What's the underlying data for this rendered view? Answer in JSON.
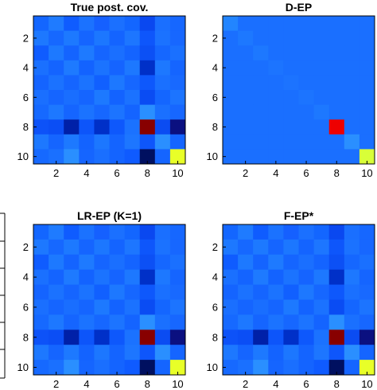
{
  "chart_data": [
    {
      "type": "heatmap",
      "title": "True post. cov.",
      "x_ticks": [
        "2",
        "4",
        "6",
        "8",
        "10"
      ],
      "y_ticks": [
        "2",
        "4",
        "6",
        "8",
        "10"
      ],
      "colors": [
        [
          "#1366ff",
          "#1f7bff",
          "#0f5cff",
          "#1b72ff",
          "#1560ff",
          "#1b70ff",
          "#1366ff",
          "#0a48f0",
          "#1a6fff",
          "#1667ff"
        ],
        [
          "#1d78ff",
          "#1668ff",
          "#1d79ff",
          "#1565ff",
          "#1c77ff",
          "#1464ff",
          "#1d76ff",
          "#0e56fb",
          "#1b72ff",
          "#1767ff"
        ],
        [
          "#0f5cff",
          "#1d79ff",
          "#1464ff",
          "#1e7aff",
          "#1565ff",
          "#1a6fff",
          "#1464ff",
          "#0c50f5",
          "#1567ff",
          "#1a70ff"
        ],
        [
          "#1a70ff",
          "#1464ff",
          "#1e7aff",
          "#1363ff",
          "#1b73ff",
          "#1564ff",
          "#1d78ff",
          "#0030c8",
          "#1d78ff",
          "#1565ff"
        ],
        [
          "#1464ff",
          "#1b72ff",
          "#1565ff",
          "#1b73ff",
          "#1160ff",
          "#1d78ff",
          "#1667ff",
          "#0e58fc",
          "#1a70ff",
          "#1869ff"
        ],
        [
          "#1a6fff",
          "#1565ff",
          "#196eff",
          "#1565ff",
          "#1d79ff",
          "#1363ff",
          "#1b72ff",
          "#0a4cf3",
          "#1466ff",
          "#1c74ff"
        ],
        [
          "#1669ff",
          "#1d78ff",
          "#1565ff",
          "#1b73ff",
          "#1667ff",
          "#1c74ff",
          "#1464ff",
          "#2a8fff",
          "#1a70ff",
          "#1767ff"
        ],
        [
          "#0d52f8",
          "#0b4ef5",
          "#0020a8",
          "#0d55fa",
          "#0030c8",
          "#0e58fc",
          "#1b72ff",
          "#880000",
          "#0b4cf2",
          "#0b1080"
        ],
        [
          "#1d78ff",
          "#1565ff",
          "#1d79ff",
          "#1363ff",
          "#1c77ff",
          "#1464ff",
          "#1d76ff",
          "#0e56fb",
          "#2a8fff",
          "#1565ff"
        ],
        [
          "#1669ff",
          "#1a70ff",
          "#2a8fff",
          "#1565ff",
          "#1a6fff",
          "#1464ff",
          "#0f5bff",
          "#001060",
          "#1565ff",
          "#e8ff28"
        ]
      ]
    },
    {
      "type": "heatmap",
      "title": "D-EP",
      "x_ticks": [
        "2",
        "4",
        "6",
        "8",
        "10"
      ],
      "y_ticks": [
        "2",
        "4",
        "6",
        "8",
        "10"
      ],
      "colors": [
        [
          "#2285ff",
          "#1a6fff",
          "#1a6fff",
          "#1a6fff",
          "#1a6fff",
          "#1a6fff",
          "#1a6fff",
          "#1a6fff",
          "#1a6fff",
          "#1a6fff"
        ],
        [
          "#1a6fff",
          "#1d78ff",
          "#1a6fff",
          "#1a6fff",
          "#1a6fff",
          "#1a6fff",
          "#1a6fff",
          "#1a6fff",
          "#1a6fff",
          "#1a6fff"
        ],
        [
          "#1a6fff",
          "#1a6fff",
          "#1d78ff",
          "#1a6fff",
          "#1a6fff",
          "#1a6fff",
          "#1a6fff",
          "#1a6fff",
          "#1a6fff",
          "#1a6fff"
        ],
        [
          "#1a6fff",
          "#1a6fff",
          "#1a6fff",
          "#1c74ff",
          "#1a6fff",
          "#1a6fff",
          "#1a6fff",
          "#1a6fff",
          "#1a6fff",
          "#1a6fff"
        ],
        [
          "#1a6fff",
          "#1a6fff",
          "#1a6fff",
          "#1a6fff",
          "#1c73ff",
          "#1a6fff",
          "#1a6fff",
          "#1a6fff",
          "#1a6fff",
          "#1a6fff"
        ],
        [
          "#1a6fff",
          "#1a6fff",
          "#1a6fff",
          "#1a6fff",
          "#1a6fff",
          "#1c74ff",
          "#1a6fff",
          "#1a6fff",
          "#1a6fff",
          "#1a6fff"
        ],
        [
          "#1a6fff",
          "#1a6fff",
          "#1a6fff",
          "#1a6fff",
          "#1a6fff",
          "#1a6fff",
          "#1d78ff",
          "#1a6fff",
          "#1a6fff",
          "#1a6fff"
        ],
        [
          "#1a6fff",
          "#1a6fff",
          "#1a6fff",
          "#1a6fff",
          "#1a6fff",
          "#1a6fff",
          "#1a6fff",
          "#ee0000",
          "#1a6fff",
          "#1a6fff"
        ],
        [
          "#1a6fff",
          "#1a6fff",
          "#1a6fff",
          "#1a6fff",
          "#1a6fff",
          "#1a6fff",
          "#1a6fff",
          "#1a6fff",
          "#2a8fff",
          "#1a6fff"
        ],
        [
          "#1a6fff",
          "#1a6fff",
          "#1a6fff",
          "#1a6fff",
          "#1a6fff",
          "#1a6fff",
          "#1a6fff",
          "#1a6fff",
          "#1a6fff",
          "#d8ff38"
        ]
      ]
    },
    {
      "type": "heatmap",
      "title": "LR-EP (K=1)",
      "x_ticks": [
        "2",
        "4",
        "6",
        "8",
        "10"
      ],
      "y_ticks": [
        "2",
        "4",
        "6",
        "8",
        "10"
      ],
      "colors": [
        [
          "#1366ff",
          "#1f7bff",
          "#0f5cff",
          "#1b72ff",
          "#1560ff",
          "#1b70ff",
          "#1366ff",
          "#0a48f0",
          "#1a6fff",
          "#1667ff"
        ],
        [
          "#1d78ff",
          "#1668ff",
          "#1d79ff",
          "#1565ff",
          "#1c77ff",
          "#1464ff",
          "#1d76ff",
          "#0e56fb",
          "#1b72ff",
          "#1767ff"
        ],
        [
          "#0f5cff",
          "#1d79ff",
          "#1464ff",
          "#1e7aff",
          "#1565ff",
          "#1a6fff",
          "#1464ff",
          "#0c50f5",
          "#1567ff",
          "#1a70ff"
        ],
        [
          "#1a70ff",
          "#1464ff",
          "#1e7aff",
          "#1363ff",
          "#1b73ff",
          "#1564ff",
          "#1d78ff",
          "#0030c8",
          "#1d78ff",
          "#1565ff"
        ],
        [
          "#1464ff",
          "#1b72ff",
          "#1565ff",
          "#1b73ff",
          "#1160ff",
          "#1d78ff",
          "#1667ff",
          "#0e58fc",
          "#1a70ff",
          "#1869ff"
        ],
        [
          "#1a6fff",
          "#1565ff",
          "#196eff",
          "#1565ff",
          "#1d79ff",
          "#1363ff",
          "#1b72ff",
          "#0a4cf3",
          "#1466ff",
          "#1c74ff"
        ],
        [
          "#1669ff",
          "#1d78ff",
          "#1565ff",
          "#1b73ff",
          "#1667ff",
          "#1c74ff",
          "#1464ff",
          "#2a8fff",
          "#1a70ff",
          "#1767ff"
        ],
        [
          "#0d52f8",
          "#0b4ef5",
          "#0020a8",
          "#0d55fa",
          "#0030c8",
          "#0e58fc",
          "#1b72ff",
          "#880000",
          "#0b4cf2",
          "#0b1080"
        ],
        [
          "#1d78ff",
          "#1565ff",
          "#1d79ff",
          "#1363ff",
          "#1c77ff",
          "#1464ff",
          "#1d76ff",
          "#0e56fb",
          "#2a8fff",
          "#1565ff"
        ],
        [
          "#1669ff",
          "#1a70ff",
          "#2a8fff",
          "#1565ff",
          "#1a6fff",
          "#1464ff",
          "#0f5bff",
          "#001060",
          "#1565ff",
          "#e8ff28"
        ]
      ]
    },
    {
      "type": "heatmap",
      "title": "F-EP*",
      "x_ticks": [
        "2",
        "4",
        "6",
        "8",
        "10"
      ],
      "y_ticks": [
        "2",
        "4",
        "6",
        "8",
        "10"
      ],
      "colors": [
        [
          "#1366ff",
          "#1f7bff",
          "#0f5cff",
          "#1b72ff",
          "#1560ff",
          "#1b70ff",
          "#1366ff",
          "#0a48f0",
          "#1a6fff",
          "#1667ff"
        ],
        [
          "#1d78ff",
          "#1668ff",
          "#1d79ff",
          "#1565ff",
          "#1c77ff",
          "#1464ff",
          "#1d76ff",
          "#0e56fb",
          "#1b72ff",
          "#1767ff"
        ],
        [
          "#0f5cff",
          "#1d79ff",
          "#1464ff",
          "#1e7aff",
          "#1565ff",
          "#1a6fff",
          "#1464ff",
          "#0c50f5",
          "#1567ff",
          "#1a70ff"
        ],
        [
          "#1a70ff",
          "#1464ff",
          "#1e7aff",
          "#1363ff",
          "#1b73ff",
          "#1564ff",
          "#1d78ff",
          "#0030c8",
          "#1d78ff",
          "#1565ff"
        ],
        [
          "#1464ff",
          "#1b72ff",
          "#1565ff",
          "#1b73ff",
          "#1160ff",
          "#1d78ff",
          "#1667ff",
          "#0e58fc",
          "#1a70ff",
          "#1869ff"
        ],
        [
          "#1a6fff",
          "#1565ff",
          "#196eff",
          "#1565ff",
          "#1d79ff",
          "#1363ff",
          "#1b72ff",
          "#0a4cf3",
          "#1466ff",
          "#1c74ff"
        ],
        [
          "#1669ff",
          "#1d78ff",
          "#1565ff",
          "#1b73ff",
          "#1667ff",
          "#1c74ff",
          "#1464ff",
          "#2a8fff",
          "#1a70ff",
          "#1767ff"
        ],
        [
          "#0d52f8",
          "#0b4ef5",
          "#0020a8",
          "#0d55fa",
          "#0030c8",
          "#0e58fc",
          "#1b72ff",
          "#880000",
          "#0b4cf2",
          "#0b1080"
        ],
        [
          "#1d78ff",
          "#1565ff",
          "#1d79ff",
          "#1363ff",
          "#1c77ff",
          "#1464ff",
          "#1d76ff",
          "#0e56fb",
          "#2a8fff",
          "#1565ff"
        ],
        [
          "#1669ff",
          "#1a70ff",
          "#2a8fff",
          "#1565ff",
          "#1a6fff",
          "#1464ff",
          "#0f5bff",
          "#001060",
          "#1565ff",
          "#e8ff28"
        ]
      ]
    }
  ]
}
